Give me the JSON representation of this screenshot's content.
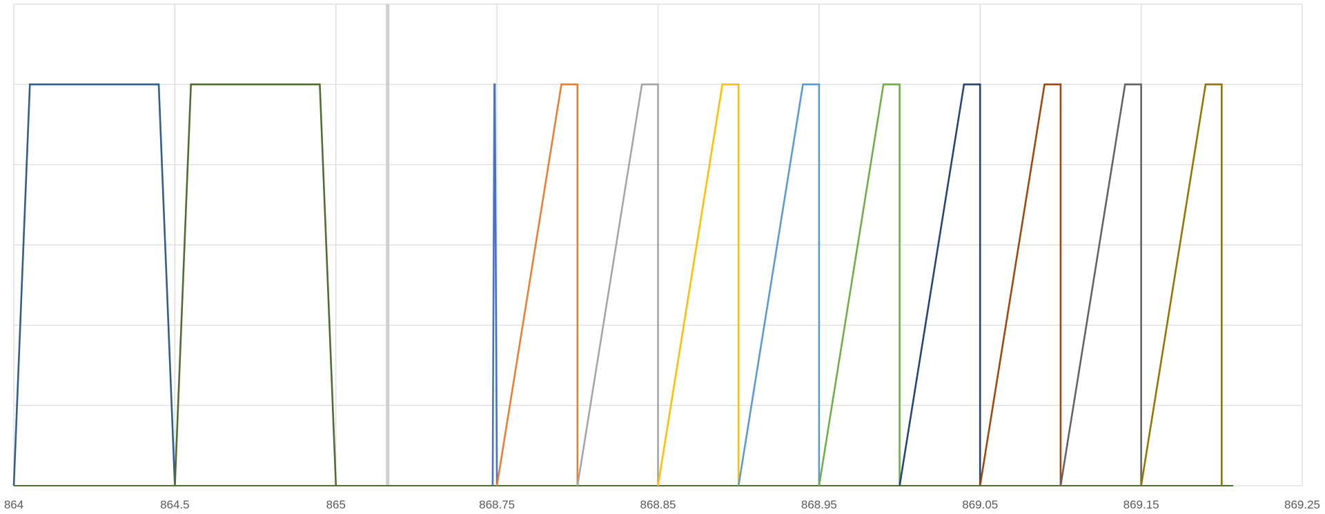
{
  "chart_data": {
    "type": "line",
    "title": "",
    "xlabel": "",
    "ylabel": "",
    "x_ticks": [
      "864",
      "864.5",
      "865",
      "868.75",
      "868.85",
      "868.95",
      "869.05",
      "869.15",
      "869.25"
    ],
    "grid": true,
    "legend": "none",
    "y_gridline_count": 6,
    "series": [
      {
        "color": "#2e5f8f",
        "points": [
          [
            864.0,
            0
          ],
          [
            864.05,
            1
          ],
          [
            864.45,
            1
          ],
          [
            864.5,
            0
          ]
        ]
      },
      {
        "color": "#4e6e2e",
        "points": [
          [
            864.5,
            0
          ],
          [
            864.55,
            1
          ],
          [
            864.95,
            1
          ],
          [
            865.0,
            0
          ]
        ]
      },
      {
        "color": "#4472c4",
        "points": [
          [
            868.65,
            0
          ],
          [
            868.69,
            1
          ],
          [
            868.7,
            1
          ],
          [
            868.75,
            0
          ]
        ]
      },
      {
        "color": "#ed7d31",
        "points": [
          [
            868.75,
            0
          ],
          [
            868.79,
            1
          ],
          [
            868.8,
            1
          ],
          [
            868.8,
            0
          ]
        ]
      },
      {
        "color": "#a5a5a5",
        "points": [
          [
            868.8,
            0
          ],
          [
            868.84,
            1
          ],
          [
            868.85,
            1
          ],
          [
            868.85,
            0
          ]
        ]
      },
      {
        "color": "#ffc000",
        "points": [
          [
            868.85,
            0
          ],
          [
            868.89,
            1
          ],
          [
            868.9,
            1
          ],
          [
            868.9,
            0
          ]
        ]
      },
      {
        "color": "#5b9bd5",
        "points": [
          [
            868.9,
            0
          ],
          [
            868.94,
            1
          ],
          [
            868.95,
            1
          ],
          [
            868.95,
            0
          ]
        ]
      },
      {
        "color": "#70ad47",
        "points": [
          [
            868.95,
            0
          ],
          [
            868.99,
            1
          ],
          [
            869.0,
            1
          ],
          [
            869.0,
            0
          ]
        ]
      },
      {
        "color": "#264478",
        "points": [
          [
            869.0,
            0
          ],
          [
            869.04,
            1
          ],
          [
            869.05,
            1
          ],
          [
            869.05,
            0
          ]
        ]
      },
      {
        "color": "#9e480e",
        "points": [
          [
            869.05,
            0
          ],
          [
            869.09,
            1
          ],
          [
            869.1,
            1
          ],
          [
            869.1,
            0
          ]
        ]
      },
      {
        "color": "#636363",
        "points": [
          [
            869.1,
            0
          ],
          [
            869.14,
            1
          ],
          [
            869.15,
            1
          ],
          [
            869.15,
            0
          ]
        ]
      },
      {
        "color": "#997300",
        "points": [
          [
            869.15,
            0
          ],
          [
            869.19,
            1
          ],
          [
            869.2,
            1
          ],
          [
            869.2,
            0
          ]
        ]
      }
    ]
  }
}
